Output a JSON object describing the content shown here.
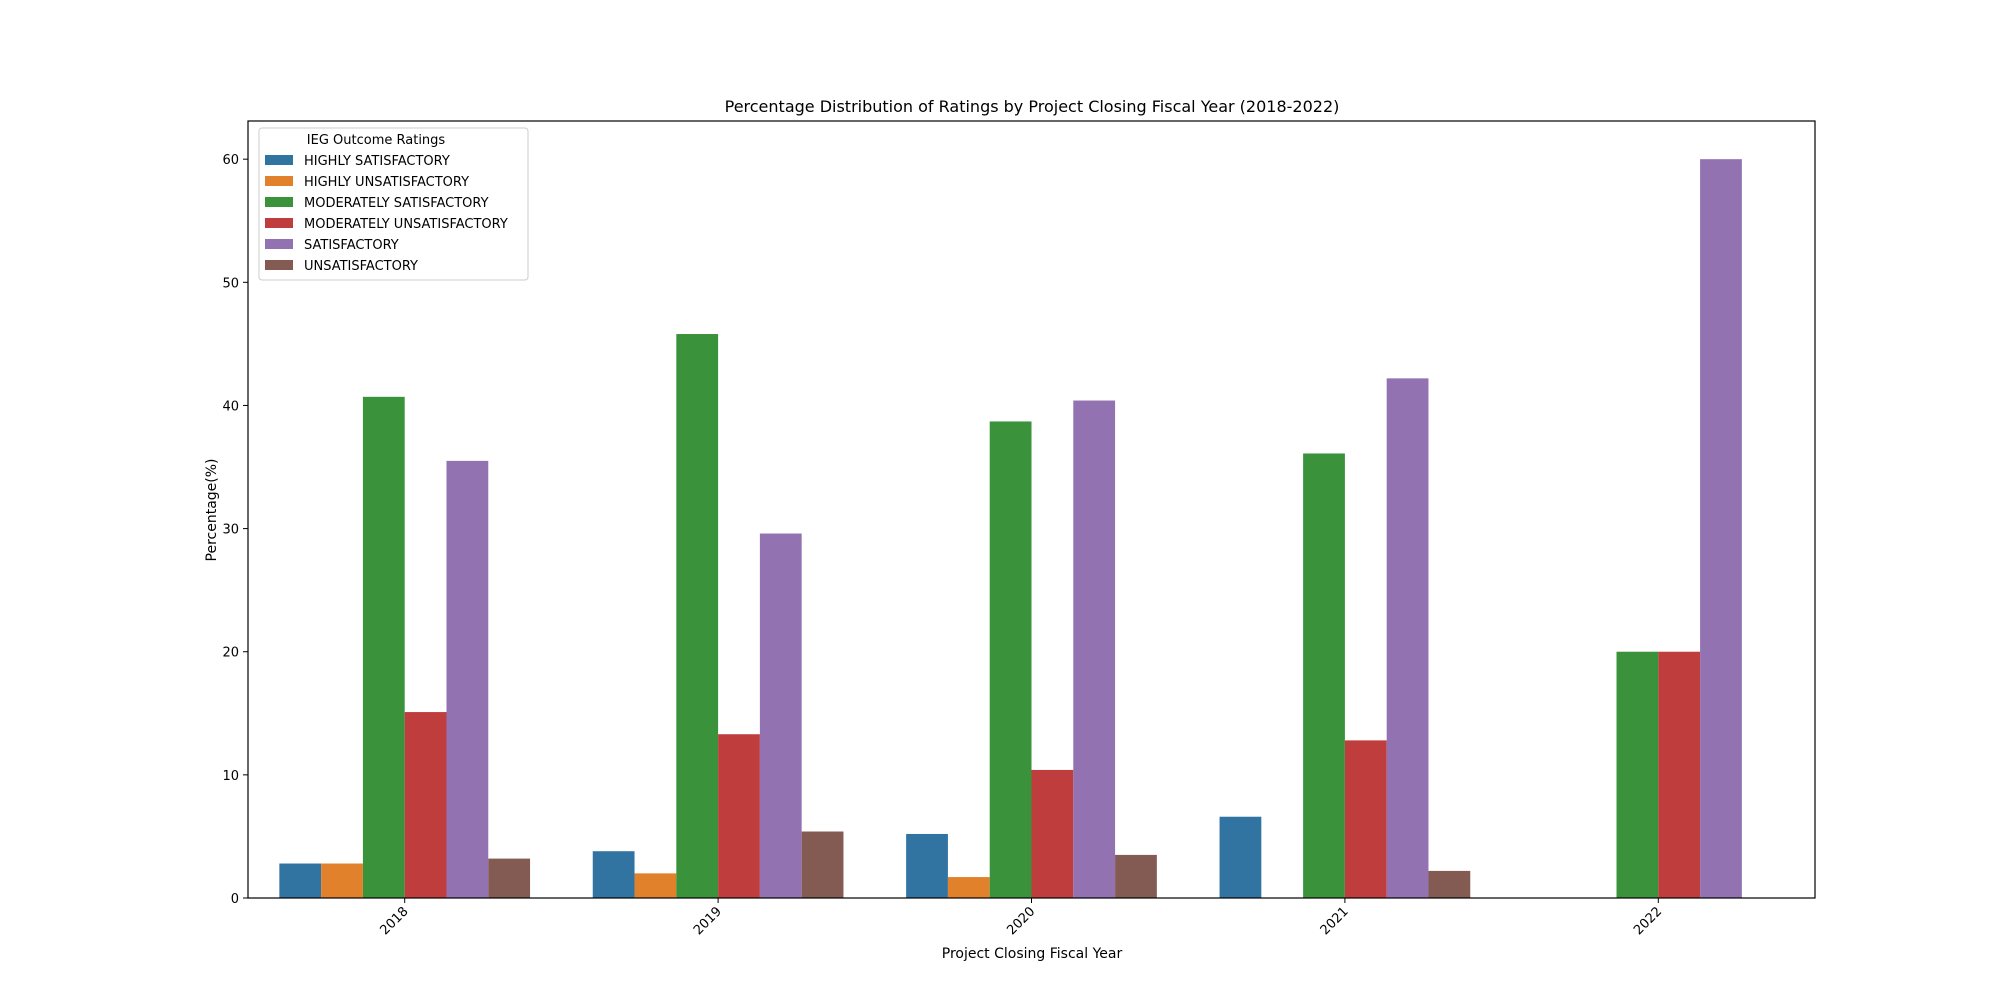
{
  "chart_data": {
    "type": "bar",
    "title": "Percentage Distribution of Ratings by Project Closing Fiscal Year (2018-2022)",
    "xlabel": "Project Closing Fiscal Year",
    "ylabel": "Percentage(%)",
    "categories": [
      "2018",
      "2019",
      "2020",
      "2021",
      "2022"
    ],
    "ylim": [
      0,
      63.1
    ],
    "yticks": [
      0,
      10,
      20,
      30,
      40,
      50,
      60
    ],
    "grid": false,
    "legend": {
      "title": "IEG Outcome Ratings",
      "placement": "top-left"
    },
    "series": [
      {
        "name": "HIGHLY SATISFACTORY",
        "color": "#3274a1",
        "values": [
          2.8,
          3.8,
          5.2,
          6.6,
          0
        ]
      },
      {
        "name": "HIGHLY UNSATISFACTORY",
        "color": "#e1812c",
        "values": [
          2.8,
          2.0,
          1.7,
          0,
          0
        ]
      },
      {
        "name": "MODERATELY SATISFACTORY",
        "color": "#3a923a",
        "values": [
          40.7,
          45.8,
          38.7,
          36.1,
          20.0
        ]
      },
      {
        "name": "MODERATELY UNSATISFACTORY",
        "color": "#c03d3e",
        "values": [
          15.1,
          13.3,
          10.4,
          12.8,
          20.0
        ]
      },
      {
        "name": "SATISFACTORY",
        "color": "#9372b2",
        "values": [
          35.5,
          29.6,
          40.4,
          42.2,
          60.0
        ]
      },
      {
        "name": "UNSATISFACTORY",
        "color": "#845b53",
        "values": [
          3.2,
          5.4,
          3.5,
          2.2,
          0
        ]
      }
    ]
  }
}
